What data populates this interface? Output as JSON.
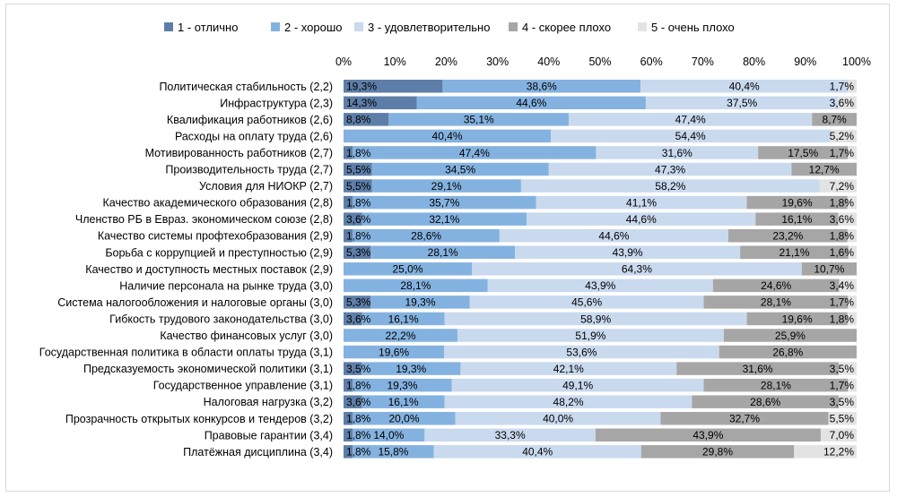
{
  "chart_data": {
    "type": "bar",
    "orientation": "horizontal",
    "stacked": "percent",
    "xlim": [
      0,
      100
    ],
    "x_ticks": [
      "0%",
      "10%",
      "20%",
      "30%",
      "40%",
      "50%",
      "60%",
      "70%",
      "80%",
      "90%",
      "100%"
    ],
    "legend_position": "top",
    "categories": [
      "Политическая стабильность (2,2)",
      "Инфраструктура (2,3)",
      "Квалификация работников (2,6)",
      "Расходы на оплату труда (2,6)",
      "Мотивированность работников (2,7)",
      "Производительность труда (2,7)",
      "Условия для НИОКР (2,7)",
      "Качество академического образования (2,8)",
      "Членство РБ в Евраз. экономическом союзе (2,8)",
      "Качество системы профтехобразования (2,9)",
      "Борьба с коррупцией и преступностью (2,9)",
      "Качество и доступность местных поставок (2,9)",
      "Наличие персонала на рынке труда (3,0)",
      "Система налогообложения и налоговые органы (3,0)",
      "Гибкость трудового законодательства (3,0)",
      "Качество финансовых услуг (3,0)",
      "Государственная политика в области оплаты труда (3,1)",
      "Предсказуемость экономической политики (3,1)",
      "Государственное управление (3,1)",
      "Налоговая нагрузка (3,2)",
      "Прозрачность открытых конкурсов и тендеров (3,2)",
      "Правовые гарантии (3,4)",
      "Платёжная дисциплина (3,4)"
    ],
    "series": [
      {
        "name": "1 - отлично",
        "color": "#5d7ea8",
        "values": [
          19.3,
          14.3,
          8.8,
          0,
          1.8,
          5.5,
          5.5,
          1.8,
          3.6,
          1.8,
          5.3,
          0,
          0,
          5.3,
          3.6,
          0,
          0,
          3.5,
          1.8,
          3.6,
          1.8,
          1.8,
          1.8
        ],
        "labels": [
          "19,3%",
          "14,3%",
          "8,8%",
          "",
          "1,8%",
          "5,5%",
          "5,5%",
          "1,8%",
          "3,6%",
          "1,8%",
          "5,3%",
          "",
          "",
          "5,3%",
          "3,6%",
          "",
          "",
          "3,5%",
          "1,8%",
          "3,6%",
          "1,8%",
          "1,8%",
          "1,8%"
        ]
      },
      {
        "name": "2 - хорошо",
        "color": "#84b2e0",
        "values": [
          38.6,
          44.6,
          35.1,
          40.4,
          47.4,
          34.5,
          29.1,
          35.7,
          32.1,
          28.6,
          28.1,
          25.0,
          28.1,
          19.3,
          16.1,
          22.2,
          19.6,
          19.3,
          19.3,
          16.1,
          20.0,
          14.0,
          15.8
        ],
        "labels": [
          "38,6%",
          "44,6%",
          "35,1%",
          "40,4%",
          "47,4%",
          "34,5%",
          "29,1%",
          "35,7%",
          "32,1%",
          "28,6%",
          "28,1%",
          "25,0%",
          "28,1%",
          "19,3%",
          "16,1%",
          "22,2%",
          "19,6%",
          "19,3%",
          "19,3%",
          "16,1%",
          "20,0%",
          "14,0%",
          "15,8%"
        ]
      },
      {
        "name": "3 - удовлетворительно",
        "color": "#c9d9ee",
        "values": [
          40.4,
          37.5,
          47.4,
          54.4,
          31.6,
          47.3,
          58.2,
          41.1,
          44.6,
          44.6,
          43.9,
          64.3,
          43.9,
          45.6,
          58.9,
          51.9,
          53.6,
          42.1,
          49.1,
          48.2,
          40.0,
          33.3,
          40.4
        ],
        "labels": [
          "40,4%",
          "37,5%",
          "47,4%",
          "54,4%",
          "31,6%",
          "47,3%",
          "58,2%",
          "41,1%",
          "44,6%",
          "44,6%",
          "43,9%",
          "64,3%",
          "43,9%",
          "45,6%",
          "58,9%",
          "51,9%",
          "53,6%",
          "42,1%",
          "49,1%",
          "48,2%",
          "40,0%",
          "33,3%",
          "40,4%"
        ]
      },
      {
        "name": "4 - скорее плохо",
        "color": "#a6a6a6",
        "values": [
          0,
          0,
          8.7,
          0,
          17.5,
          12.7,
          0,
          19.6,
          16.1,
          23.2,
          21.1,
          10.7,
          24.6,
          28.1,
          19.6,
          25.9,
          26.8,
          31.6,
          28.1,
          28.6,
          32.7,
          43.9,
          29.8
        ],
        "labels": [
          "",
          "",
          "8,7%",
          "",
          "17,5%",
          "12,7%",
          "",
          "19,6%",
          "16,1%",
          "23,2%",
          "21,1%",
          "10,7%",
          "24,6%",
          "28,1%",
          "19,6%",
          "25,9%",
          "26,8%",
          "31,6%",
          "28,1%",
          "28,6%",
          "32,7%",
          "43,9%",
          "29,8%"
        ]
      },
      {
        "name": "5 - очень плохо",
        "color": "#e3e3e3",
        "values": [
          1.7,
          3.6,
          0,
          5.2,
          1.7,
          0,
          7.2,
          1.8,
          3.6,
          1.8,
          1.6,
          0,
          3.4,
          1.7,
          1.8,
          0,
          0,
          3.5,
          1.7,
          3.5,
          5.5,
          7.0,
          12.2
        ],
        "labels": [
          "1,7%",
          "3,6%",
          "",
          "5,2%",
          "1,7%",
          "",
          "7,2%",
          "1,8%",
          "3,6%",
          "1,8%",
          "1,6%",
          "",
          "3,4%",
          "1,7%",
          "1,8%",
          "",
          "",
          "3,5%",
          "1,7%",
          "3,5%",
          "5,5%",
          "7,0%",
          "12,2%"
        ]
      }
    ]
  }
}
